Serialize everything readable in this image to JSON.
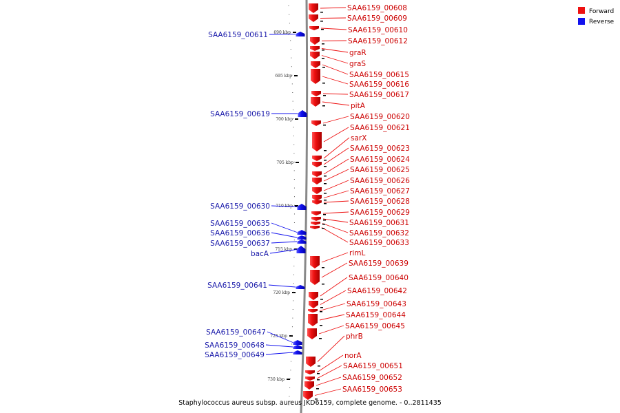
{
  "caption": "Staphylococcus aureus subsp. aureus JKD6159, complete genome. - 0..2811435",
  "legend": {
    "forward": {
      "label": "Forward",
      "color": "#ee1111"
    },
    "reverse": {
      "label": "Reverse",
      "color": "#1111ee"
    }
  },
  "ticks": [
    "690 kbp",
    "695 kbp",
    "700 kbp",
    "705 kbp",
    "710 kbp",
    "715 kbp",
    "720 kbp",
    "725 kbp",
    "730 kbp"
  ],
  "forward_genes": [
    "SAA6159_00608",
    "SAA6159_00609",
    "SAA6159_00610",
    "SAA6159_00612",
    "graR",
    "graS",
    "SAA6159_00615",
    "SAA6159_00616",
    "SAA6159_00617",
    "pitA",
    "SAA6159_00620",
    "SAA6159_00621",
    "sarX",
    "SAA6159_00623",
    "SAA6159_00624",
    "SAA6159_00625",
    "SAA6159_00626",
    "SAA6159_00627",
    "SAA6159_00628",
    "SAA6159_00629",
    "SAA6159_00631",
    "SAA6159_00632",
    "SAA6159_00633",
    "rimL",
    "SAA6159_00639",
    "SAA6159_00640",
    "SAA6159_00642",
    "SAA6159_00643",
    "SAA6159_00644",
    "SAA6159_00645",
    "phrB",
    "norA",
    "SAA6159_00651",
    "SAA6159_00652",
    "SAA6159_00653"
  ],
  "reverse_genes": [
    "SAA6159_00611",
    "SAA6159_00619",
    "SAA6159_00630",
    "SAA6159_00635",
    "SAA6159_00636",
    "SAA6159_00637",
    "bacA",
    "SAA6159_00641",
    "SAA6159_00647",
    "SAA6159_00648",
    "SAA6159_00649"
  ]
}
